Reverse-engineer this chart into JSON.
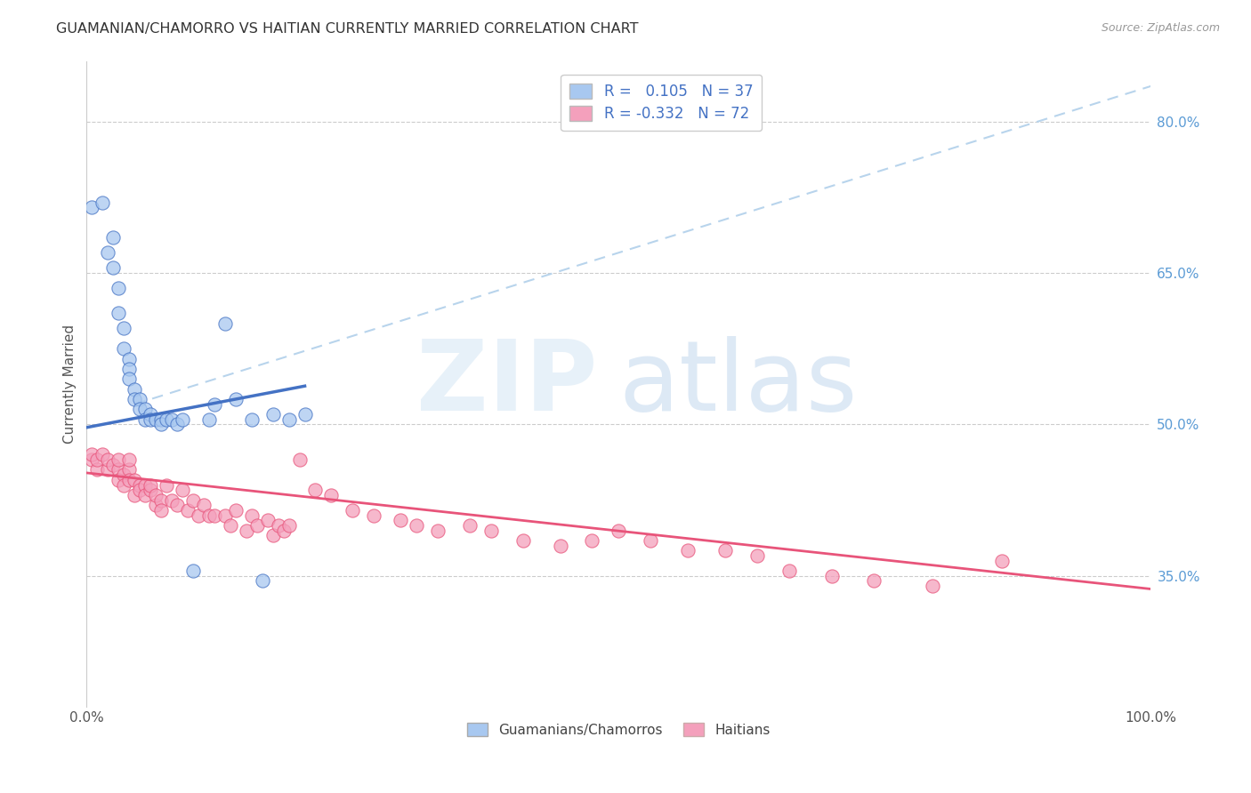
{
  "title": "GUAMANIAN/CHAMORRO VS HAITIAN CURRENTLY MARRIED CORRELATION CHART",
  "source": "Source: ZipAtlas.com",
  "ylabel": "Currently Married",
  "legend_label1": "Guamanians/Chamorros",
  "legend_label2": "Haitians",
  "R1": 0.105,
  "N1": 37,
  "R2": -0.332,
  "N2": 72,
  "color_blue": "#A8C8F0",
  "color_pink": "#F4A0BC",
  "color_blue_line": "#4472C4",
  "color_pink_line": "#E8547A",
  "color_dashed_line": "#B8D4EC",
  "ytick_labels": [
    "35.0%",
    "50.0%",
    "65.0%",
    "80.0%"
  ],
  "ytick_values": [
    0.35,
    0.5,
    0.65,
    0.8
  ],
  "xlim": [
    0.0,
    1.0
  ],
  "ylim": [
    0.22,
    0.86
  ],
  "guam_x": [
    0.005,
    0.015,
    0.02,
    0.025,
    0.025,
    0.03,
    0.03,
    0.035,
    0.035,
    0.04,
    0.04,
    0.04,
    0.045,
    0.045,
    0.05,
    0.05,
    0.055,
    0.055,
    0.06,
    0.06,
    0.065,
    0.07,
    0.07,
    0.075,
    0.08,
    0.085,
    0.09,
    0.1,
    0.115,
    0.12,
    0.13,
    0.14,
    0.155,
    0.165,
    0.175,
    0.19,
    0.205
  ],
  "guam_y": [
    0.715,
    0.72,
    0.67,
    0.655,
    0.685,
    0.635,
    0.61,
    0.595,
    0.575,
    0.565,
    0.555,
    0.545,
    0.535,
    0.525,
    0.525,
    0.515,
    0.515,
    0.505,
    0.51,
    0.505,
    0.505,
    0.505,
    0.5,
    0.505,
    0.505,
    0.5,
    0.505,
    0.355,
    0.505,
    0.52,
    0.6,
    0.525,
    0.505,
    0.345,
    0.51,
    0.505,
    0.51
  ],
  "haiti_x": [
    0.005,
    0.005,
    0.01,
    0.01,
    0.015,
    0.02,
    0.02,
    0.025,
    0.03,
    0.03,
    0.03,
    0.035,
    0.035,
    0.04,
    0.04,
    0.04,
    0.045,
    0.045,
    0.05,
    0.05,
    0.055,
    0.055,
    0.06,
    0.06,
    0.065,
    0.065,
    0.07,
    0.07,
    0.075,
    0.08,
    0.085,
    0.09,
    0.095,
    0.1,
    0.105,
    0.11,
    0.115,
    0.12,
    0.13,
    0.135,
    0.14,
    0.15,
    0.155,
    0.16,
    0.17,
    0.175,
    0.18,
    0.185,
    0.19,
    0.2,
    0.215,
    0.23,
    0.25,
    0.27,
    0.295,
    0.31,
    0.33,
    0.36,
    0.38,
    0.41,
    0.445,
    0.475,
    0.5,
    0.53,
    0.565,
    0.6,
    0.63,
    0.66,
    0.7,
    0.74,
    0.795,
    0.86
  ],
  "haiti_y": [
    0.465,
    0.47,
    0.455,
    0.465,
    0.47,
    0.455,
    0.465,
    0.46,
    0.455,
    0.445,
    0.465,
    0.45,
    0.44,
    0.455,
    0.445,
    0.465,
    0.43,
    0.445,
    0.44,
    0.435,
    0.44,
    0.43,
    0.435,
    0.44,
    0.42,
    0.43,
    0.425,
    0.415,
    0.44,
    0.425,
    0.42,
    0.435,
    0.415,
    0.425,
    0.41,
    0.42,
    0.41,
    0.41,
    0.41,
    0.4,
    0.415,
    0.395,
    0.41,
    0.4,
    0.405,
    0.39,
    0.4,
    0.395,
    0.4,
    0.465,
    0.435,
    0.43,
    0.415,
    0.41,
    0.405,
    0.4,
    0.395,
    0.4,
    0.395,
    0.385,
    0.38,
    0.385,
    0.395,
    0.385,
    0.375,
    0.375,
    0.37,
    0.355,
    0.35,
    0.345,
    0.34,
    0.365
  ],
  "blue_line_x": [
    0.0,
    0.205
  ],
  "blue_line_y": [
    0.497,
    0.538
  ],
  "pink_line_x": [
    0.0,
    1.0
  ],
  "pink_line_y": [
    0.452,
    0.337
  ],
  "dash_line_x": [
    0.045,
    1.0
  ],
  "dash_line_y": [
    0.52,
    0.835
  ]
}
